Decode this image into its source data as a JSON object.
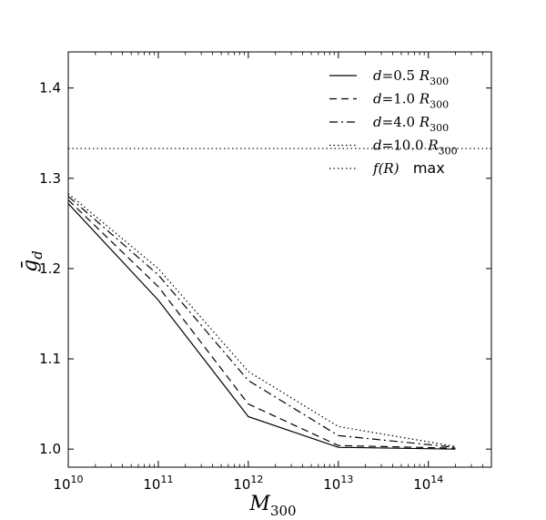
{
  "chart_data": {
    "type": "line",
    "title": "",
    "xlabel": "M_300",
    "xlabel_main": "M",
    "xlabel_sub": "300",
    "ylabel": "ḡ_d",
    "ylabel_main": "ḡ",
    "ylabel_sub": "d",
    "xscale": "log",
    "xlim_exp": [
      10,
      14.7
    ],
    "ylim": [
      0.98,
      1.44
    ],
    "x_ticks": [
      {
        "exp": 10,
        "base": "10",
        "sup": "10"
      },
      {
        "exp": 11,
        "base": "10",
        "sup": "11"
      },
      {
        "exp": 12,
        "base": "10",
        "sup": "12"
      },
      {
        "exp": 13,
        "base": "10",
        "sup": "13"
      },
      {
        "exp": 14,
        "base": "10",
        "sup": "14"
      }
    ],
    "y_ticks": [
      {
        "value": 1.0,
        "label": "1.0"
      },
      {
        "value": 1.1,
        "label": "1.1"
      },
      {
        "value": 1.2,
        "label": "1.2"
      },
      {
        "value": 1.3,
        "label": "1.3"
      },
      {
        "value": 1.4,
        "label": "1.4"
      }
    ],
    "x_exponents": [
      10,
      11,
      12,
      13,
      14.3
    ],
    "series": [
      {
        "name": "d=0.5 R300",
        "style": "solid",
        "values": [
          1.272,
          1.165,
          1.036,
          1.002,
          1.0
        ]
      },
      {
        "name": "d=1.0 R300",
        "style": "dashed",
        "values": [
          1.276,
          1.18,
          1.05,
          1.004,
          1.001
        ]
      },
      {
        "name": "d=4.0 R300",
        "style": "dashdot",
        "values": [
          1.28,
          1.193,
          1.076,
          1.015,
          1.002
        ]
      },
      {
        "name": "d=10.0 R300",
        "style": "dotted",
        "values": [
          1.283,
          1.2,
          1.086,
          1.025,
          1.003
        ]
      }
    ],
    "hlines": [
      {
        "name": "f(R) max",
        "style": "dotted",
        "value": 1.333
      }
    ],
    "legend_position": "top-right",
    "legend": [
      {
        "style": "solid",
        "var": "d",
        "eq": "=",
        "num": "0.5",
        "R": "R",
        "sub": "300"
      },
      {
        "style": "dashed",
        "var": "d",
        "eq": "=",
        "num": "1.0",
        "R": "R",
        "sub": "300"
      },
      {
        "style": "dashdot",
        "var": "d",
        "eq": "=",
        "num": "4.0",
        "R": "R",
        "sub": "300"
      },
      {
        "style": "dotted",
        "var": "d",
        "eq": "=",
        "num": "10.0",
        "R": "R",
        "sub": "300"
      },
      {
        "style": "dotted",
        "fn": "f",
        "arg": "(R)",
        "suffix": "max"
      }
    ]
  }
}
